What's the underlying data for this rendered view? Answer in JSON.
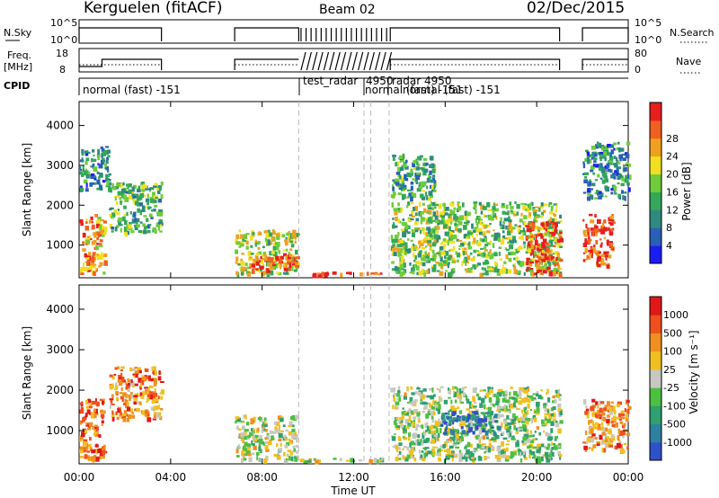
{
  "header": {
    "station": "Kerguelen (fitACF)",
    "beam": "Beam 02",
    "date": "02/Dec/2015"
  },
  "labels": {
    "nsky": "N.Sky",
    "freq": "Freq.",
    "mhz": "[MHz]",
    "cpid": "CPID",
    "nsearch": "N.Search",
    "nave": "Nave"
  },
  "ticks": {
    "nsky_left": [
      "10^5",
      "10^0"
    ],
    "nsky_right": [
      "10^5",
      "10^0"
    ],
    "freq_left": [
      "18",
      "8"
    ],
    "nave_right": [
      "80",
      "0"
    ]
  },
  "cpid_labels": [
    "normal (fast) -151",
    "test_radar",
    "4950",
    "radar 4950",
    "normal (fast) -151",
    "normal (fast) -151"
  ],
  "chart_data": [
    {
      "type": "heatmap",
      "panel": "power",
      "ylabel": "Slant Range [km]",
      "xlabel": "Time UT",
      "xticks": [
        "00:00",
        "04:00",
        "08:00",
        "12:00",
        "16:00",
        "20:00",
        "00:00"
      ],
      "xlim_hours": [
        0,
        24
      ],
      "yticks": [
        1000,
        2000,
        3000,
        4000
      ],
      "ylim": [
        180,
        4600
      ],
      "colorbar": {
        "label": "Power [dB]",
        "ticks": [
          "4",
          "8",
          "12",
          "16",
          "20",
          "24",
          "28"
        ],
        "range": [
          0,
          30
        ],
        "colors": [
          "#1c1cf5",
          "#2a5fb8",
          "#2f8a7e",
          "#33a858",
          "#6fcc3a",
          "#f0e020",
          "#f0a020",
          "#f06020",
          "#e61e1e"
        ]
      },
      "echo_regions": [
        {
          "t": [
            0.0,
            1.1
          ],
          "r": [
            300,
            1800
          ],
          "level": 0.75
        },
        {
          "t": [
            0.0,
            1.3
          ],
          "r": [
            2400,
            3500
          ],
          "level": 0.3
        },
        {
          "t": [
            1.3,
            3.6
          ],
          "r": [
            1300,
            2600
          ],
          "level": 0.4
        },
        {
          "t": [
            6.8,
            9.5
          ],
          "r": [
            300,
            1400
          ],
          "level": 0.55
        },
        {
          "t": [
            7.3,
            9.5
          ],
          "r": [
            400,
            800
          ],
          "level": 0.9
        },
        {
          "t": [
            9.6,
            13.3
          ],
          "r": [
            270,
            340
          ],
          "level": 0.9
        },
        {
          "t": [
            13.6,
            21.0
          ],
          "r": [
            300,
            2100
          ],
          "level": 0.5
        },
        {
          "t": [
            13.6,
            15.5
          ],
          "r": [
            2200,
            3300
          ],
          "level": 0.35
        },
        {
          "t": [
            19.5,
            21.0
          ],
          "r": [
            300,
            1600
          ],
          "level": 0.85
        },
        {
          "t": [
            22.0,
            23.3
          ],
          "r": [
            500,
            1800
          ],
          "level": 0.9
        },
        {
          "t": [
            22.0,
            24.0
          ],
          "r": [
            2200,
            3600
          ],
          "level": 0.3
        }
      ]
    },
    {
      "type": "heatmap",
      "panel": "velocity",
      "ylabel": "Slant Range [km]",
      "xlabel": "Time UT",
      "xticks": [
        "00:00",
        "04:00",
        "08:00",
        "12:00",
        "16:00",
        "20:00",
        "00:00"
      ],
      "xlim_hours": [
        0,
        24
      ],
      "yticks": [
        1000,
        2000,
        3000,
        4000
      ],
      "ylim": [
        180,
        4600
      ],
      "colorbar": {
        "label": "Velocity [m s⁻¹]",
        "ticks": [
          "1000",
          "500",
          "100",
          "25",
          "-25",
          "-100",
          "-500",
          "-1000"
        ],
        "range": [
          -1000,
          1000
        ],
        "colors": [
          "#3050c8",
          "#2e80a0",
          "#2fa070",
          "#4cc040",
          "#c8c8c0",
          "#f0c020",
          "#f09020",
          "#f05020",
          "#e01818"
        ]
      },
      "echo_regions": [
        {
          "t": [
            0.0,
            1.1
          ],
          "r": [
            300,
            1800
          ],
          "level": 0.8
        },
        {
          "t": [
            1.3,
            3.6
          ],
          "r": [
            1300,
            2600
          ],
          "level": 0.75
        },
        {
          "t": [
            6.8,
            9.5
          ],
          "r": [
            300,
            1400
          ],
          "level": 0.5
        },
        {
          "t": [
            9.6,
            13.3
          ],
          "r": [
            270,
            340
          ],
          "level": 0.5
        },
        {
          "t": [
            13.6,
            21.0
          ],
          "r": [
            300,
            2100
          ],
          "level": 0.45
        },
        {
          "t": [
            15.8,
            18.3
          ],
          "r": [
            950,
            1500
          ],
          "level": 0.15
        },
        {
          "t": [
            22.0,
            24.0
          ],
          "r": [
            500,
            1800
          ],
          "level": 0.7
        }
      ]
    }
  ]
}
